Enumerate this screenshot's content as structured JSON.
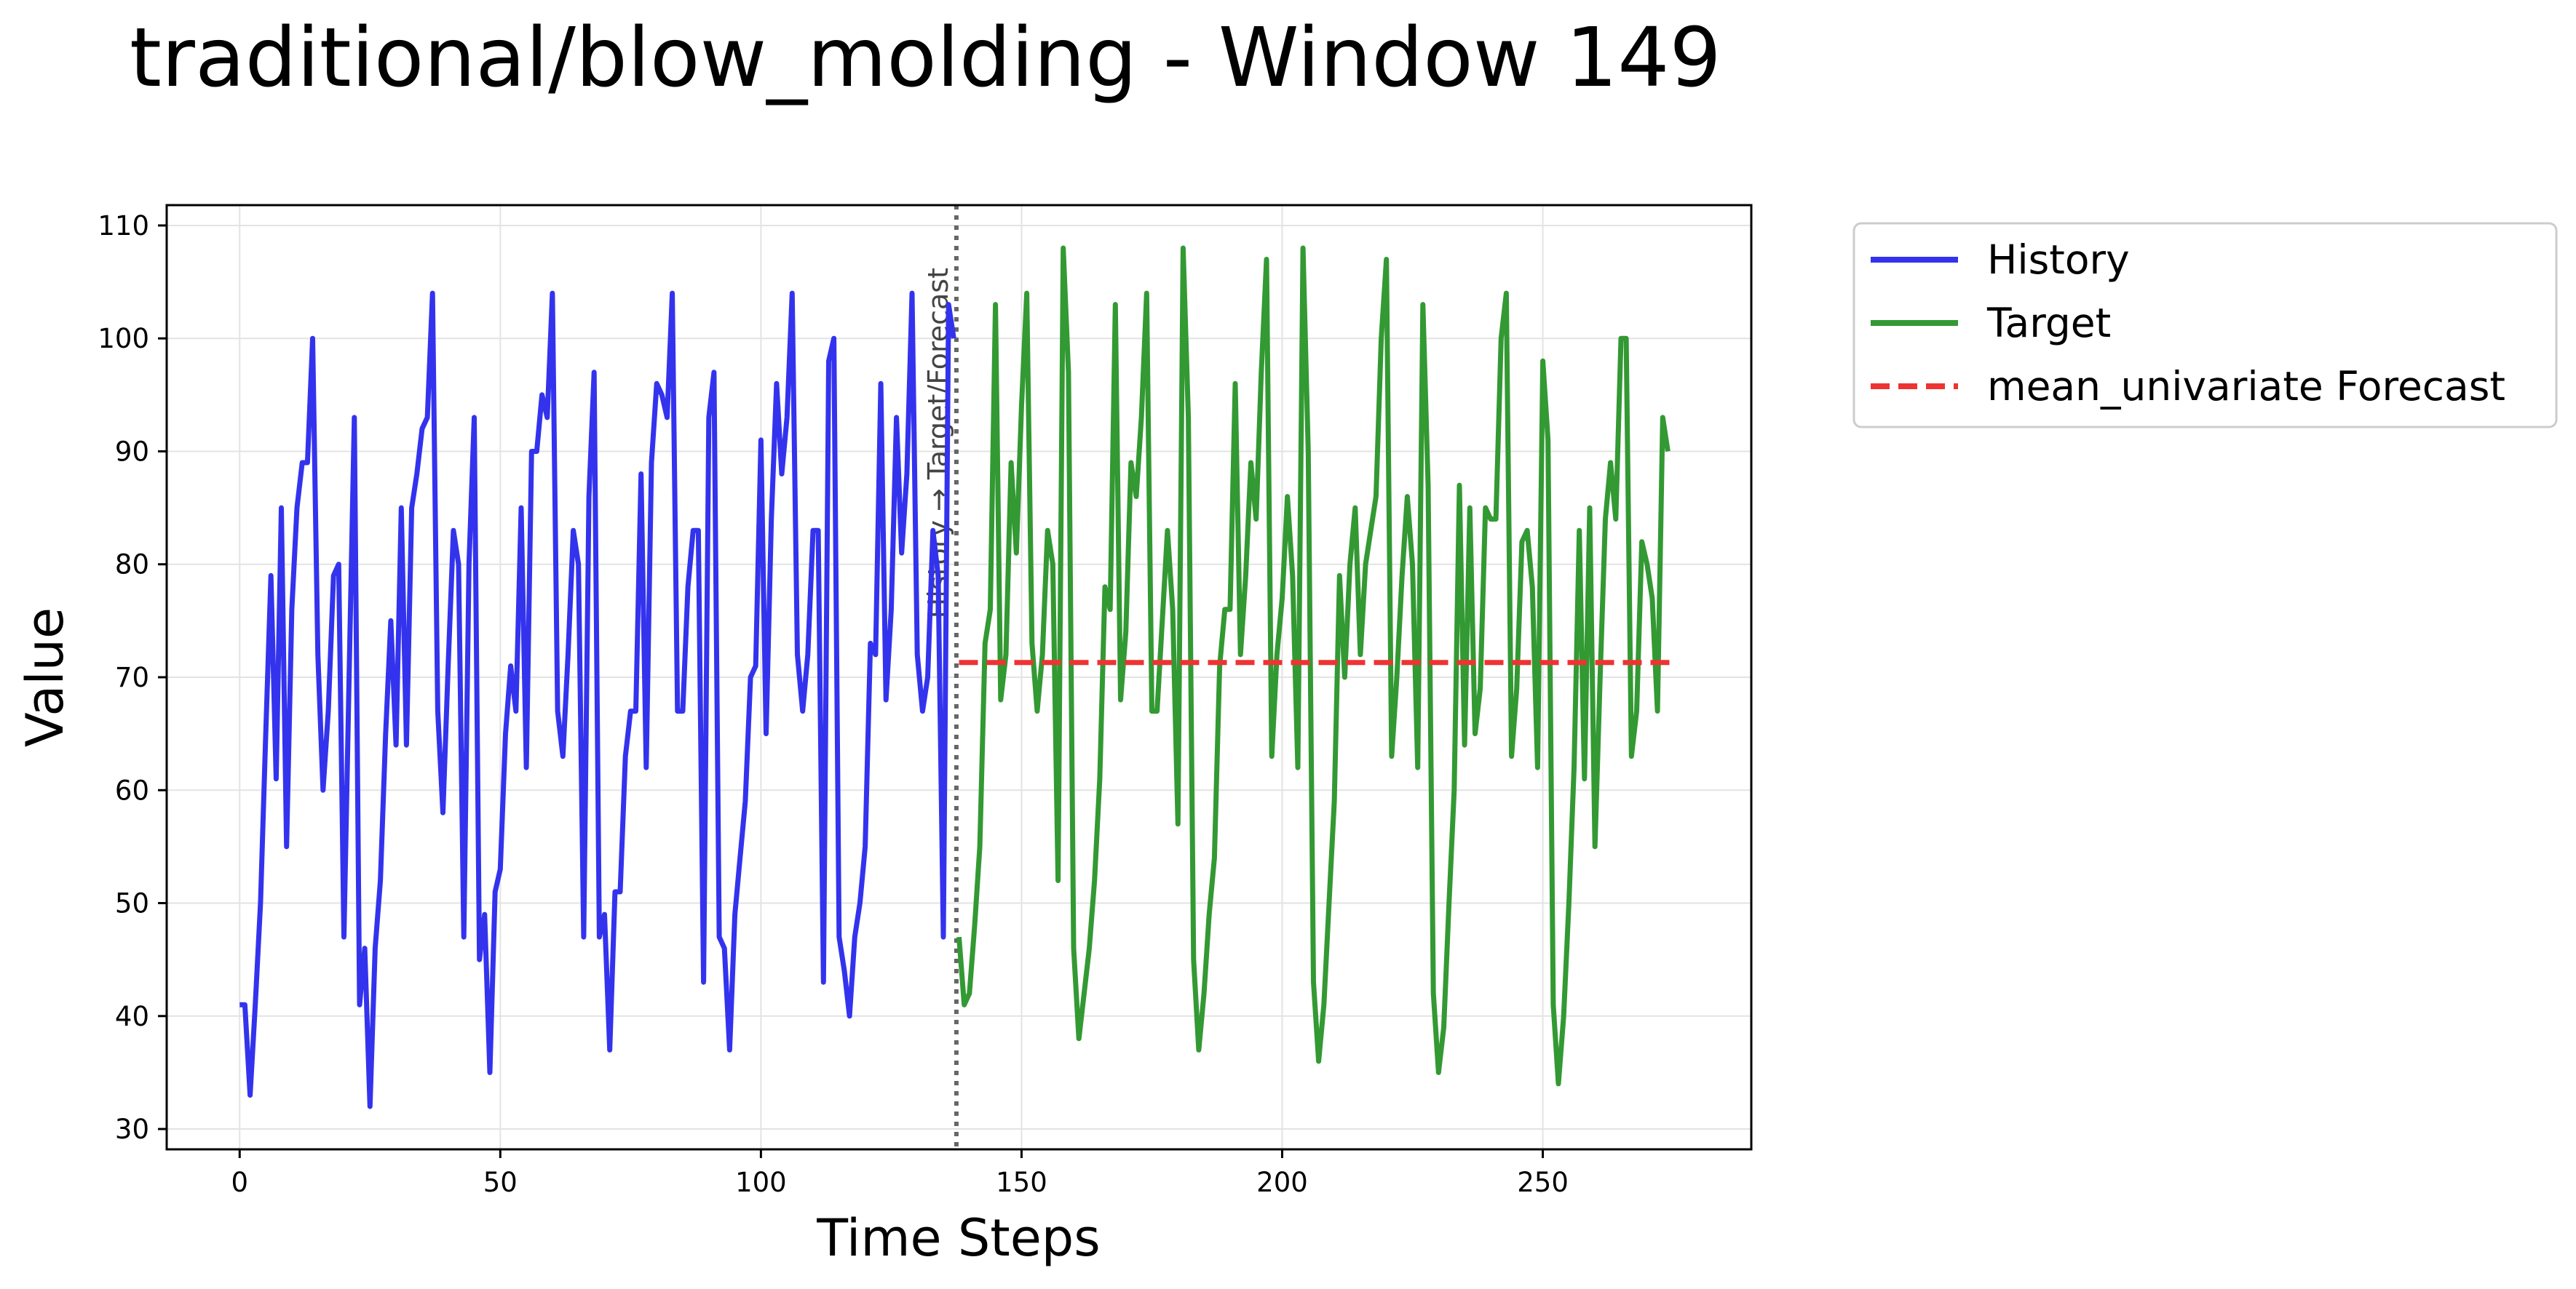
{
  "chart_data": {
    "type": "line",
    "title": "traditional/blow_molding - Window 149",
    "xlabel": "Time Steps",
    "ylabel": "Value",
    "xlim": [
      -14,
      290
    ],
    "ylim": [
      28.2,
      111.8
    ],
    "xticks": [
      0,
      50,
      100,
      150,
      200,
      250
    ],
    "yticks": [
      30,
      40,
      50,
      60,
      70,
      80,
      90,
      100,
      110
    ],
    "grid": true,
    "legend_position": "outside-top-right",
    "split_x": 137.5,
    "split_label": "History → Target/Forecast",
    "colors": {
      "history": "#3333ee",
      "target": "#339933",
      "forecast": "#ee3333",
      "split": "#666666"
    },
    "series": [
      {
        "name": "History",
        "style": "solid",
        "x_start": 0,
        "values": [
          41,
          41,
          33,
          41,
          50,
          65,
          79,
          61,
          85,
          55,
          76,
          85,
          89,
          89,
          100,
          72,
          60,
          67,
          79,
          80,
          47,
          70,
          93,
          41,
          46,
          32,
          46,
          52,
          65,
          75,
          64,
          85,
          64,
          85,
          88,
          92,
          93,
          104,
          67,
          58,
          71,
          83,
          80,
          47,
          80,
          93,
          45,
          49,
          35,
          51,
          53,
          65,
          71,
          67,
          85,
          62,
          90,
          90,
          95,
          93,
          104,
          67,
          63,
          72,
          83,
          80,
          47,
          86,
          97,
          47,
          49,
          37,
          51,
          51,
          63,
          67,
          67,
          88,
          62,
          89,
          96,
          95,
          93,
          104,
          67,
          67,
          78,
          83,
          83,
          43,
          93,
          97,
          47,
          46,
          37,
          49,
          54,
          59,
          70,
          71,
          91,
          65,
          84,
          96,
          88,
          93,
          104,
          72,
          67,
          72,
          83,
          83,
          43,
          98,
          100,
          47,
          44,
          40,
          47,
          50,
          55,
          73,
          72,
          96,
          68,
          76,
          93,
          81,
          88,
          104,
          72,
          67,
          70,
          83,
          79,
          47,
          103,
          100
        ]
      },
      {
        "name": "Target",
        "style": "solid",
        "x_start": 138,
        "values": [
          47,
          41,
          42,
          48,
          55,
          73,
          76,
          103,
          68,
          72,
          89,
          81,
          94,
          104,
          73,
          67,
          72,
          83,
          80,
          52,
          108,
          97,
          46,
          38,
          42,
          46,
          52,
          61,
          78,
          76,
          103,
          68,
          74,
          89,
          86,
          93,
          104,
          67,
          67,
          75,
          83,
          76,
          57,
          108,
          93,
          45,
          37,
          42,
          49,
          54,
          71,
          76,
          76,
          96,
          72,
          79,
          89,
          84,
          97,
          107,
          63,
          72,
          77,
          86,
          79,
          62,
          108,
          90,
          43,
          36,
          41,
          50,
          59,
          79,
          70,
          80,
          85,
          72,
          80,
          83,
          86,
          100,
          107,
          63,
          70,
          79,
          86,
          80,
          62,
          103,
          87,
          42,
          35,
          39,
          50,
          60,
          87,
          64,
          85,
          65,
          69,
          85,
          84,
          84,
          100,
          104,
          63,
          69,
          82,
          83,
          78,
          62,
          98,
          91,
          41,
          34,
          40,
          50,
          62,
          83,
          61,
          85,
          55,
          70,
          84,
          89,
          84,
          100,
          100,
          63,
          67,
          82,
          80,
          77,
          67,
          93,
          90
        ]
      },
      {
        "name": "mean_univariate Forecast",
        "style": "dashed",
        "x_start": 138,
        "x_end": 275,
        "values": [
          71.3,
          71.3
        ]
      }
    ]
  }
}
